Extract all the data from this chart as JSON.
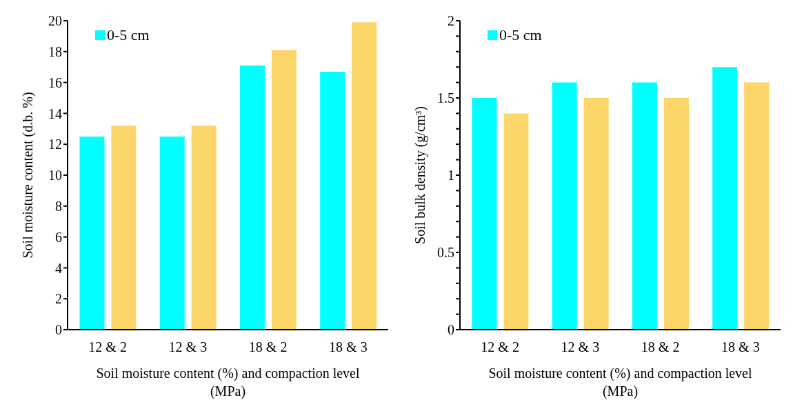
{
  "chart_data": [
    {
      "type": "bar",
      "xlabel": "Soil moisture content (%) and compaction level (MPa)",
      "ylabel": "Soil moisture content (d.b. %)",
      "categories": [
        "12 & 2",
        "12 & 3",
        "18 & 2",
        "18 & 3"
      ],
      "series": [
        {
          "name": "0-5 cm",
          "color": "#00ffff",
          "values": [
            12.5,
            12.5,
            17.1,
            16.7
          ]
        },
        {
          "color": "#fdd66a",
          "values": [
            13.2,
            13.2,
            18.1,
            19.9
          ]
        }
      ],
      "ylim": [
        0,
        20
      ],
      "yticks": [
        0,
        2,
        4,
        6,
        8,
        10,
        12,
        14,
        16,
        18,
        20
      ],
      "grid": false,
      "legend": "top left"
    },
    {
      "type": "bar",
      "xlabel": "Soil moisture content (%) and compaction level (MPa)",
      "ylabel": "Soil bulk density (g/cm³)",
      "categories": [
        "12 & 2",
        "12 & 3",
        "18 & 2",
        "18 & 3"
      ],
      "series": [
        {
          "name": "0-5 cm",
          "color": "#00ffff",
          "values": [
            1.5,
            1.6,
            1.6,
            1.7
          ]
        },
        {
          "color": "#fdd66a",
          "values": [
            1.4,
            1.5,
            1.5,
            1.6
          ]
        }
      ],
      "ylim": [
        0,
        2
      ],
      "yticks": [
        0,
        {
          "value": 0.1,
          "label": null
        },
        {
          "value": 0.2,
          "label": null
        },
        {
          "value": 0.3,
          "label": null
        },
        {
          "value": 0.4,
          "label": null
        },
        0.5,
        {
          "value": 0.6,
          "label": null
        },
        {
          "value": 0.7,
          "label": null
        },
        {
          "value": 0.8,
          "label": null
        },
        {
          "value": 0.9,
          "label": null
        },
        1,
        {
          "value": 1.1,
          "label": null
        },
        {
          "value": 1.2,
          "label": null
        },
        {
          "value": 1.3,
          "label": null
        },
        {
          "value": 1.4,
          "label": null
        },
        1.5,
        {
          "value": 1.6,
          "label": null
        },
        {
          "value": 1.7,
          "label": null
        },
        {
          "value": 1.8,
          "label": null
        },
        {
          "value": 1.9,
          "label": null
        },
        2
      ],
      "grid": false,
      "legend": "top left"
    }
  ]
}
